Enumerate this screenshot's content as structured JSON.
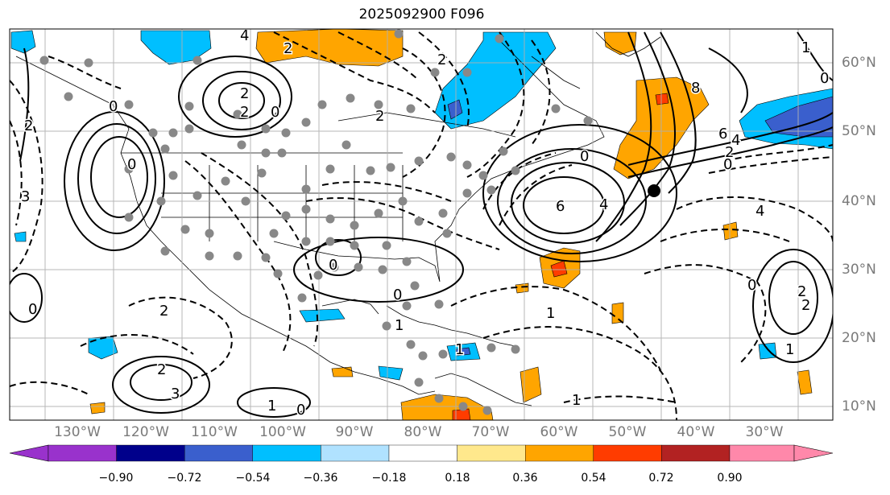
{
  "title": "2025092900 F096",
  "lat_labels": [
    "60°N",
    "50°N",
    "40°N",
    "30°N",
    "20°N",
    "10°N"
  ],
  "lon_labels": [
    "130°W",
    "120°W",
    "110°W",
    "100°W",
    "90°W",
    "80°W",
    "70°W",
    "60°W",
    "50°W",
    "40°W",
    "30°W"
  ],
  "colorbar": {
    "ticks": [
      "−0.90",
      "−0.72",
      "−0.54",
      "−0.36",
      "−0.18",
      "0.18",
      "0.36",
      "0.54",
      "0.72",
      "0.90"
    ],
    "colors": [
      "#9932cc",
      "#00008b",
      "#3a5fcd",
      "#00bfff",
      "#b0e2ff",
      "#ffffff",
      "#ffe88c",
      "#ffa500",
      "#ff3c00",
      "#b22222",
      "#ff88aa"
    ]
  },
  "contour_labels": [
    "4",
    "2",
    "2",
    "2",
    "0",
    "0",
    "3",
    "2",
    "2",
    "2",
    "0",
    "6",
    "4",
    "8",
    "6",
    "4",
    "2",
    "0",
    "0",
    "1",
    "0",
    "0",
    "2",
    "2",
    "3",
    "1",
    "1",
    "1",
    "2",
    "0",
    "0",
    "1",
    "1",
    "1",
    "2",
    "0",
    "0",
    "4"
  ]
}
